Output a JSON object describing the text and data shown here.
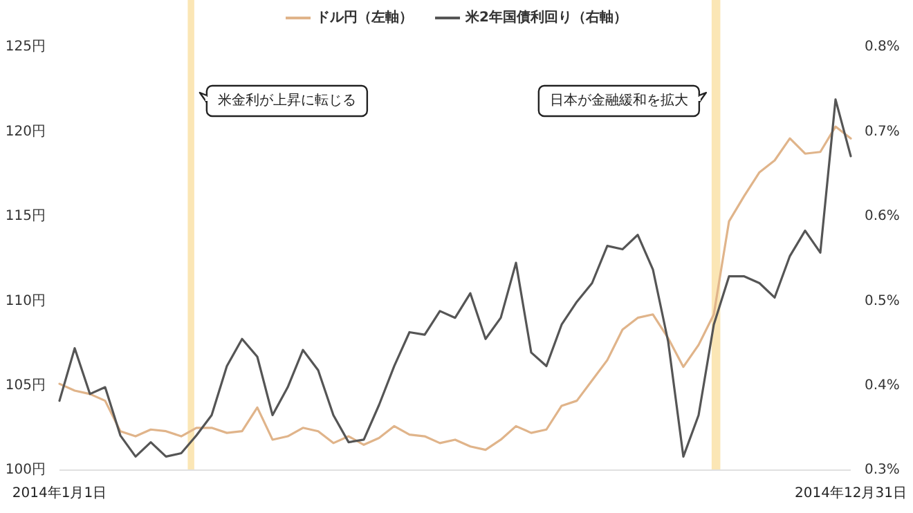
{
  "chart_data": {
    "type": "line",
    "x": [
      "2014-01-01",
      "2014-01-08",
      "2014-01-15",
      "2014-01-22",
      "2014-01-29",
      "2014-02-05",
      "2014-02-12",
      "2014-02-19",
      "2014-02-26",
      "2014-03-05",
      "2014-03-12",
      "2014-03-19",
      "2014-03-26",
      "2014-04-02",
      "2014-04-09",
      "2014-04-16",
      "2014-04-23",
      "2014-04-30",
      "2014-05-07",
      "2014-05-14",
      "2014-05-21",
      "2014-05-28",
      "2014-06-04",
      "2014-06-11",
      "2014-06-18",
      "2014-06-25",
      "2014-07-02",
      "2014-07-09",
      "2014-07-16",
      "2014-07-23",
      "2014-07-30",
      "2014-08-06",
      "2014-08-13",
      "2014-08-20",
      "2014-08-27",
      "2014-09-03",
      "2014-09-10",
      "2014-09-17",
      "2014-09-24",
      "2014-10-01",
      "2014-10-08",
      "2014-10-15",
      "2014-10-22",
      "2014-10-29",
      "2014-11-05",
      "2014-11-12",
      "2014-11-19",
      "2014-11-26",
      "2014-12-03",
      "2014-12-10",
      "2014-12-17",
      "2014-12-24",
      "2014-12-31"
    ],
    "series": [
      {
        "name": "ドル円（左軸）",
        "color": "#e0b48a",
        "values": [
          105.1,
          104.7,
          104.5,
          104.1,
          102.3,
          102.0,
          102.4,
          102.3,
          102.0,
          102.5,
          102.5,
          102.2,
          102.3,
          103.7,
          101.8,
          102.0,
          102.5,
          102.3,
          101.6,
          102.0,
          101.5,
          101.9,
          102.6,
          102.1,
          102.0,
          101.6,
          101.8,
          101.4,
          101.2,
          101.8,
          102.6,
          102.2,
          102.4,
          103.8,
          104.1,
          105.3,
          106.5,
          108.3,
          109.0,
          109.2,
          107.8,
          106.1,
          107.4,
          109.2,
          114.7,
          116.2,
          117.6,
          118.3,
          119.6,
          118.7,
          118.8,
          120.3,
          119.6
        ]
      },
      {
        "name": "米2年国債利回り（右軸）",
        "color": "#555555",
        "axis": "y2",
        "values": [
          0.382,
          0.444,
          0.39,
          0.398,
          0.341,
          0.316,
          0.333,
          0.316,
          0.32,
          0.341,
          0.365,
          0.423,
          0.455,
          0.434,
          0.365,
          0.398,
          0.442,
          0.418,
          0.365,
          0.333,
          0.336,
          0.377,
          0.423,
          0.463,
          0.46,
          0.488,
          0.48,
          0.509,
          0.455,
          0.48,
          0.545,
          0.439,
          0.423,
          0.472,
          0.499,
          0.521,
          0.565,
          0.561,
          0.578,
          0.537,
          0.452,
          0.316,
          0.365,
          0.472,
          0.529,
          0.529,
          0.521,
          0.504,
          0.553,
          0.583,
          0.557,
          0.738,
          0.671
        ]
      }
    ],
    "xlim": [
      "2014-01-01",
      "2014-12-31"
    ],
    "xticks": [
      {
        "value": "2014-01-01",
        "label": "2014年1月1日"
      },
      {
        "value": "2014-12-31",
        "label": "2014年12月31日"
      }
    ],
    "ylim": [
      100,
      125
    ],
    "yticks": [
      {
        "value": 100,
        "label": "100円"
      },
      {
        "value": 105,
        "label": "105円"
      },
      {
        "value": 110,
        "label": "110円"
      },
      {
        "value": 115,
        "label": "115円"
      },
      {
        "value": 120,
        "label": "120円"
      },
      {
        "value": 125,
        "label": "125円"
      }
    ],
    "y2lim": [
      0.3,
      0.8
    ],
    "y2ticks": [
      {
        "value": 0.3,
        "label": "0.3%"
      },
      {
        "value": 0.4,
        "label": "0.4%"
      },
      {
        "value": 0.5,
        "label": "0.5%"
      },
      {
        "value": 0.6,
        "label": "0.6%"
      },
      {
        "value": 0.7,
        "label": "0.7%"
      },
      {
        "value": 0.8,
        "label": "0.8%"
      }
    ],
    "bands": [
      {
        "axis": "x",
        "from": "2014-03-01",
        "to": "2014-03-04",
        "label": "米金利が上昇に転じる",
        "color": "#fbe6b5"
      },
      {
        "axis": "x",
        "from": "2014-10-28",
        "to": "2014-11-01",
        "label": "日本が金融緩和を拡大",
        "color": "#fbe6b5"
      }
    ],
    "legend": "top"
  }
}
